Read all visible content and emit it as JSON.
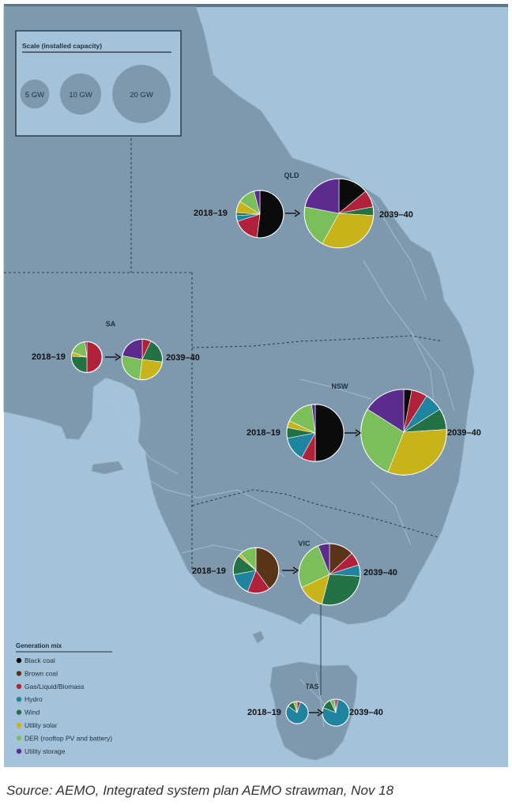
{
  "colors": {
    "sea": "#a4c3db",
    "land": "#7e99ae",
    "border": "#2c3e4c",
    "categories": {
      "black_coal": "#0b0b0b",
      "brown_coal": "#5a3418",
      "gas": "#b2213a",
      "hydro": "#1f84a0",
      "wind": "#237245",
      "utility_solar": "#c9b31b",
      "der": "#7bbf5a",
      "utility_storage": "#5b2b8e"
    }
  },
  "scale_box": {
    "title": "Scale (installed capacity)",
    "items": [
      {
        "label": "5 GW",
        "gw": 5
      },
      {
        "label": "10 GW",
        "gw": 10
      },
      {
        "label": "20 GW",
        "gw": 20
      }
    ]
  },
  "legend": {
    "title": "Generation mix",
    "items": [
      {
        "key": "black_coal",
        "label": "Black coal"
      },
      {
        "key": "brown_coal",
        "label": "Brown coal"
      },
      {
        "key": "gas",
        "label": "Gas/Liquid/Biomass"
      },
      {
        "key": "hydro",
        "label": "Hydro"
      },
      {
        "key": "wind",
        "label": "Wind"
      },
      {
        "key": "utility_solar",
        "label": "Utility solar"
      },
      {
        "key": "der",
        "label": "DER (rooftop PV and battery)"
      },
      {
        "key": "utility_storage",
        "label": "Utility storage"
      }
    ]
  },
  "regions": [
    {
      "id": "qld",
      "name": "QLD",
      "arrow": "→",
      "before": {
        "label": "2018–19",
        "gw": 13,
        "mix": {
          "black_coal": 0.52,
          "gas": 0.18,
          "hydro": 0.04,
          "wind": 0.02,
          "utility_solar": 0.08,
          "der": 0.12,
          "utility_storage": 0.04
        }
      },
      "after": {
        "label": "2039–40",
        "gw": 28,
        "mix": {
          "black_coal": 0.14,
          "gas": 0.08,
          "wind": 0.04,
          "utility_solar": 0.32,
          "der": 0.2,
          "utility_storage": 0.22
        }
      }
    },
    {
      "id": "sa",
      "name": "SA",
      "arrow": "→",
      "before": {
        "label": "2018–19",
        "gw": 5.5,
        "mix": {
          "gas": 0.5,
          "wind": 0.26,
          "utility_solar": 0.04,
          "der": 0.18,
          "utility_storage": 0.02
        }
      },
      "after": {
        "label": "2039–40",
        "gw": 9.5,
        "mix": {
          "gas": 0.07,
          "wind": 0.2,
          "utility_solar": 0.25,
          "der": 0.26,
          "utility_storage": 0.22
        }
      }
    },
    {
      "id": "nsw",
      "name": "NSW",
      "arrow": "→",
      "before": {
        "label": "2018–19",
        "gw": 19,
        "mix": {
          "black_coal": 0.5,
          "gas": 0.08,
          "hydro": 0.14,
          "wind": 0.06,
          "utility_solar": 0.04,
          "der": 0.16,
          "utility_storage": 0.02
        }
      },
      "after": {
        "label": "2039–40",
        "gw": 43,
        "mix": {
          "black_coal": 0.03,
          "gas": 0.06,
          "hydro": 0.07,
          "wind": 0.08,
          "utility_solar": 0.32,
          "der": 0.28,
          "utility_storage": 0.16
        }
      }
    },
    {
      "id": "vic",
      "name": "VIC",
      "arrow": "→",
      "before": {
        "label": "2018–19",
        "gw": 12,
        "mix": {
          "brown_coal": 0.4,
          "gas": 0.16,
          "hydro": 0.16,
          "wind": 0.14,
          "utility_solar": 0.02,
          "der": 0.12
        }
      },
      "after": {
        "label": "2039–40",
        "gw": 22,
        "mix": {
          "brown_coal": 0.13,
          "gas": 0.07,
          "hydro": 0.06,
          "wind": 0.28,
          "utility_solar": 0.14,
          "der": 0.26,
          "utility_storage": 0.06
        }
      }
    },
    {
      "id": "tas",
      "name": "TAS",
      "arrow": "→",
      "before": {
        "label": "2018–19",
        "gw": 2.8,
        "mix": {
          "gas": 0.05,
          "hydro": 0.8,
          "wind": 0.1,
          "der": 0.05
        }
      },
      "after": {
        "label": "2039–40",
        "gw": 4.2,
        "mix": {
          "gas": 0.03,
          "hydro": 0.78,
          "wind": 0.12,
          "der": 0.05,
          "utility_storage": 0.02
        }
      }
    }
  ],
  "caption": "Source: AEMO, Integrated system plan AEMO strawman, Nov 18"
}
